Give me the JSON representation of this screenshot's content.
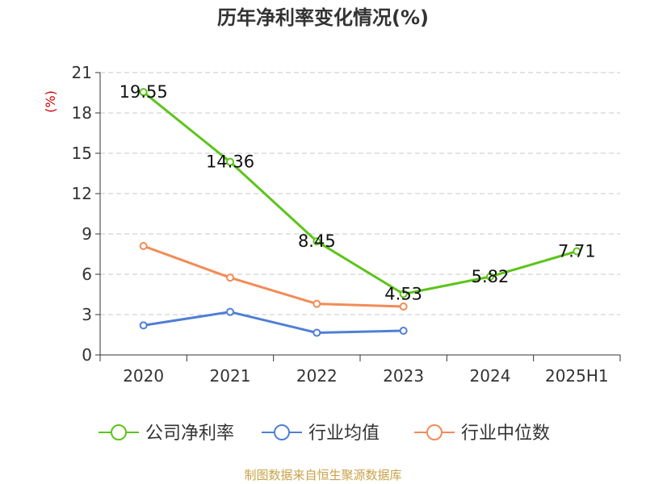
{
  "chart_data": {
    "type": "line",
    "title": "历年净利率变化情况(%)",
    "ylabel": "(%)",
    "categories": [
      "2020",
      "2021",
      "2022",
      "2023",
      "2024",
      "2025H1"
    ],
    "yticks": [
      "0",
      "3",
      "6",
      "9",
      "12",
      "15",
      "18",
      "21"
    ],
    "ylim": [
      0,
      21
    ],
    "grid": true,
    "legend_position": "bottom",
    "series": [
      {
        "name": "公司净利率",
        "color": "#5cc41a",
        "values": [
          19.55,
          14.36,
          8.45,
          4.53,
          5.82,
          7.71
        ],
        "labels": [
          "19.55",
          "14.36",
          "8.45",
          "4.53",
          "5.82",
          "7.71"
        ],
        "show_labels": true
      },
      {
        "name": "行业均值",
        "color": "#4f7fd6",
        "values": [
          2.2,
          3.2,
          1.65,
          1.8,
          null,
          null
        ],
        "show_labels": false
      },
      {
        "name": "行业中位数",
        "color": "#f28b57",
        "values": [
          8.1,
          5.75,
          3.8,
          3.6,
          null,
          null
        ],
        "show_labels": false
      }
    ]
  },
  "source": "制图数据来自恒生聚源数据库"
}
